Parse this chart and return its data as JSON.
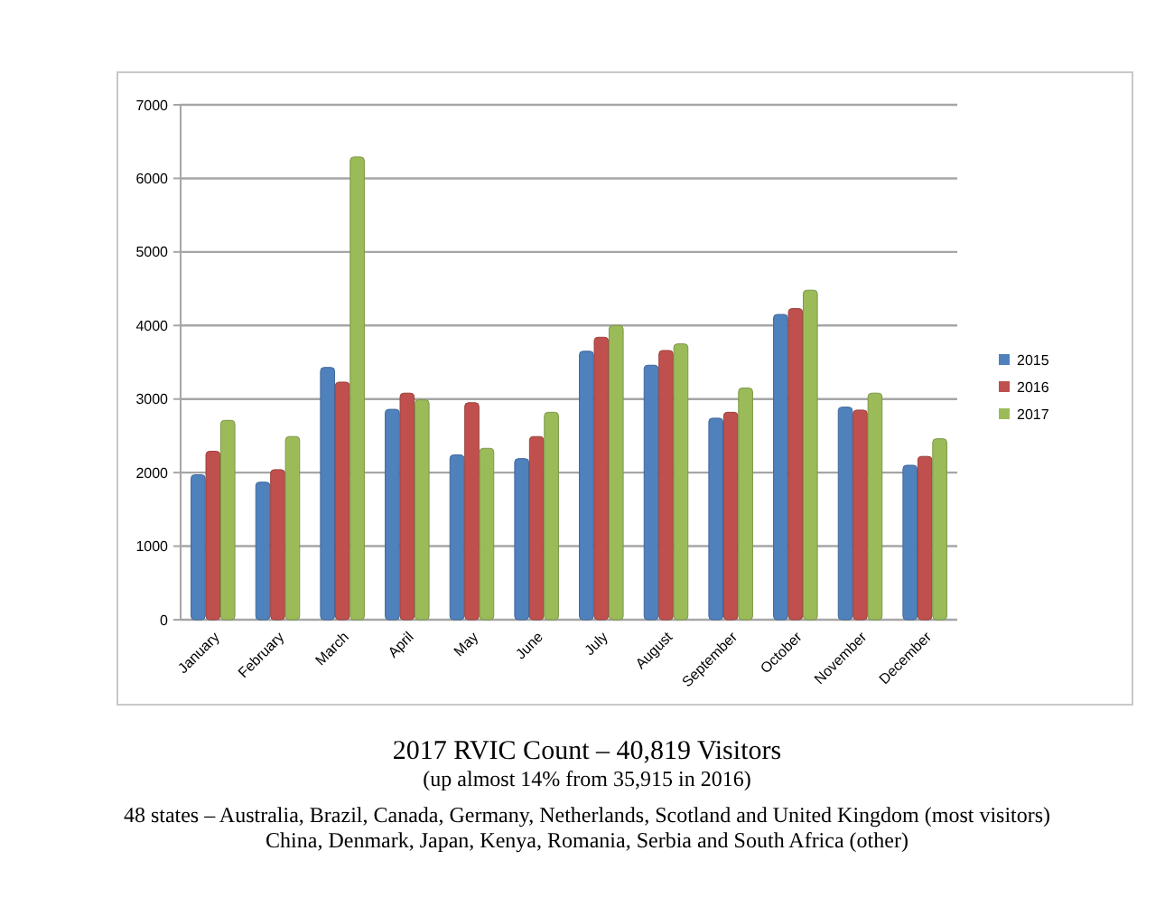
{
  "chart_data": {
    "type": "bar",
    "categories": [
      "January",
      "February",
      "March",
      "April",
      "May",
      "June",
      "July",
      "August",
      "September",
      "October",
      "November",
      "December"
    ],
    "series": [
      {
        "name": "2015",
        "color": "#4f81bd",
        "values": [
          1970,
          1870,
          3430,
          2860,
          2240,
          2190,
          3650,
          3460,
          2740,
          4150,
          2890,
          2100
        ]
      },
      {
        "name": "2016",
        "color": "#c0504d",
        "values": [
          2290,
          2040,
          3230,
          3080,
          2950,
          2490,
          3840,
          3660,
          2820,
          4230,
          2850,
          2220
        ]
      },
      {
        "name": "2017",
        "color": "#9bbb59",
        "values": [
          2710,
          2490,
          6290,
          2990,
          2330,
          2820,
          4000,
          3750,
          3150,
          4480,
          3080,
          2460
        ]
      }
    ],
    "ylim": [
      0,
      7000
    ],
    "yticks": [
      0,
      1000,
      2000,
      3000,
      4000,
      5000,
      6000,
      7000
    ],
    "grid": "y",
    "legend": "right",
    "title": "2017 RVIC Count – 40,819 Visitors",
    "subtitle": "(up almost 14% from 35,915 in 2016)",
    "annotations": [
      "48 states – Australia, Brazil, Canada, Germany, Netherlands, Scotland and United Kingdom (most visitors)",
      "China, Denmark, Japan, Kenya, Romania, Serbia and South Africa (other)"
    ]
  }
}
